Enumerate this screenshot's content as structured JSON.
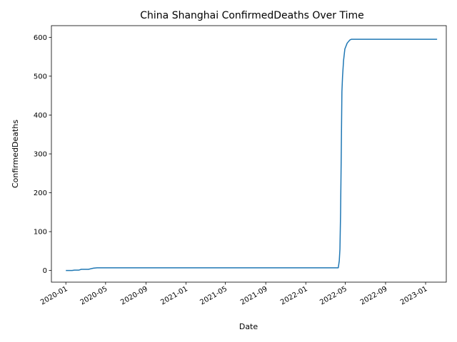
{
  "chart_data": {
    "type": "line",
    "title": "China Shanghai ConfirmedDeaths Over Time",
    "xlabel": "Date",
    "ylabel": "ConfirmedDeaths",
    "x_ticks": [
      "2020-01",
      "2020-05",
      "2020-09",
      "2021-01",
      "2021-05",
      "2021-09",
      "2022-01",
      "2022-05",
      "2022-09",
      "2023-01"
    ],
    "y_ticks": [
      "0",
      "100",
      "200",
      "300",
      "400",
      "500",
      "600"
    ],
    "ylim": [
      -30,
      630
    ],
    "xlim": [
      "2019-11-18",
      "2023-03-05"
    ],
    "grid": false,
    "series": [
      {
        "color": "#1f77b4",
        "points": [
          [
            "2020-01-01",
            0
          ],
          [
            "2020-01-20",
            0
          ],
          [
            "2020-01-27",
            1
          ],
          [
            "2020-02-10",
            1
          ],
          [
            "2020-02-17",
            3
          ],
          [
            "2020-03-10",
            3
          ],
          [
            "2020-03-25",
            6
          ],
          [
            "2020-04-05",
            7
          ],
          [
            "2021-06-01",
            7
          ],
          [
            "2022-04-10",
            7
          ],
          [
            "2022-04-13",
            25
          ],
          [
            "2022-04-15",
            55
          ],
          [
            "2022-04-17",
            150
          ],
          [
            "2022-04-19",
            300
          ],
          [
            "2022-04-21",
            460
          ],
          [
            "2022-04-23",
            500
          ],
          [
            "2022-04-26",
            540
          ],
          [
            "2022-04-30",
            570
          ],
          [
            "2022-05-07",
            585
          ],
          [
            "2022-05-15",
            593
          ],
          [
            "2022-05-20",
            595
          ],
          [
            "2023-02-05",
            595
          ]
        ]
      }
    ]
  }
}
